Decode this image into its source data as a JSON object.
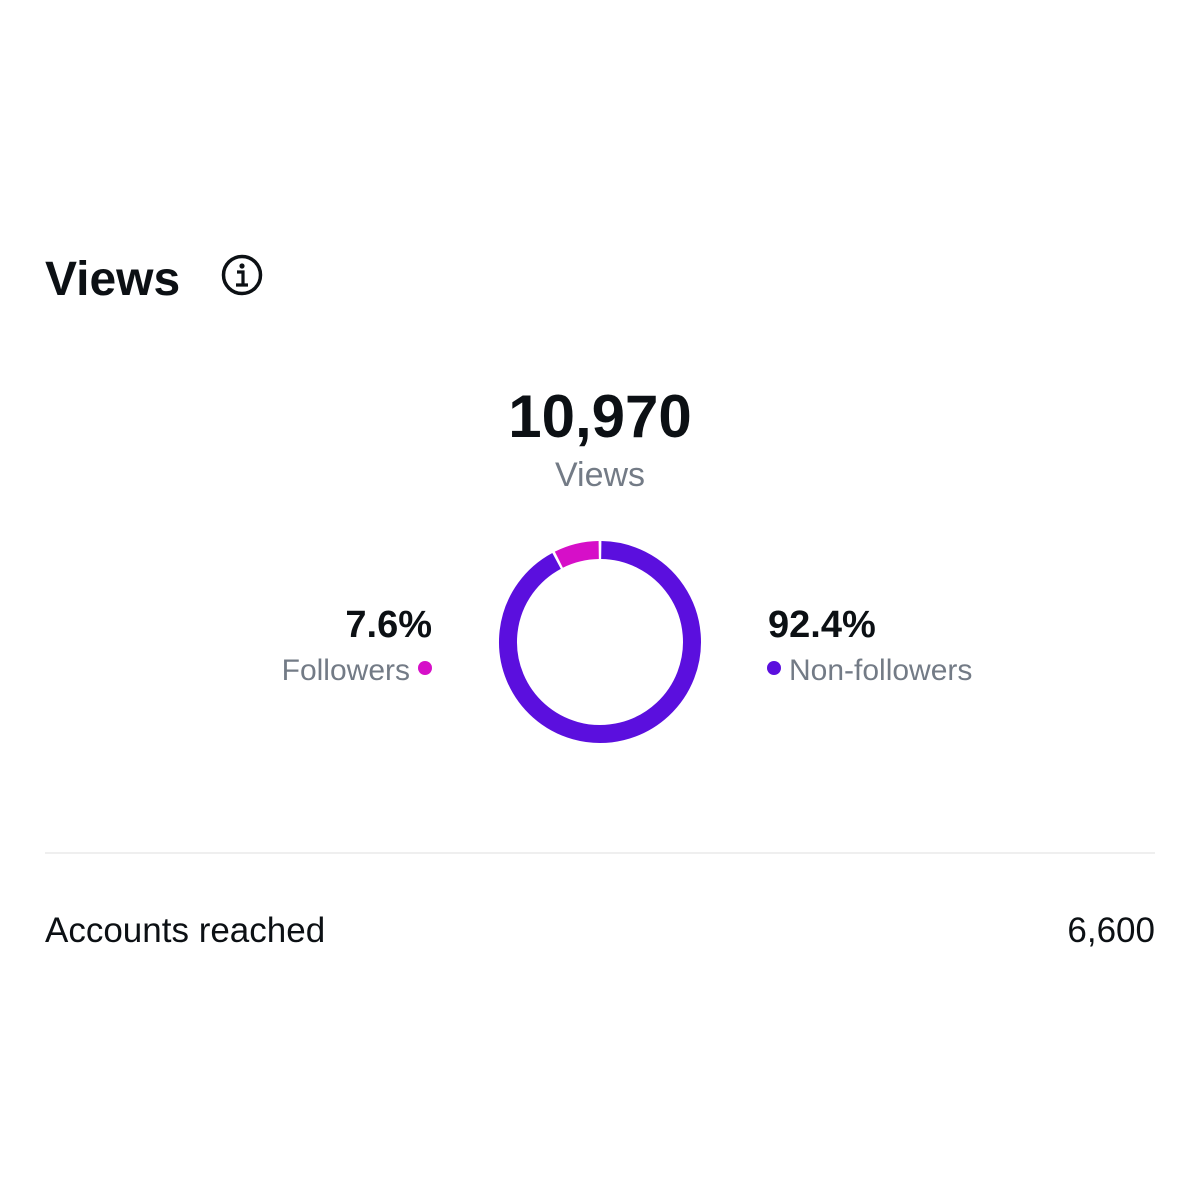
{
  "header": {
    "title": "Views"
  },
  "chart_data": {
    "type": "donut",
    "center_value": "10,970",
    "center_label": "Views",
    "categories": [
      "Followers",
      "Non-followers"
    ],
    "values": [
      7.6,
      92.4
    ],
    "value_labels": [
      "7.6%",
      "92.4%"
    ],
    "colors": [
      "#d60fc8",
      "#5b0fde"
    ]
  },
  "metrics": {
    "rows": [
      {
        "label": "Accounts reached",
        "value": "6,600"
      }
    ]
  }
}
